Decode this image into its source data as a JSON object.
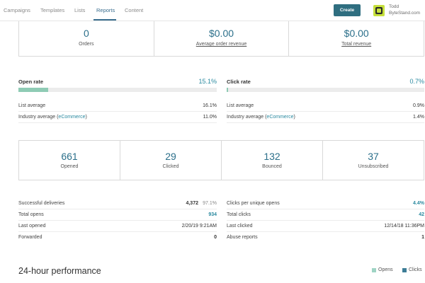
{
  "nav": {
    "items": [
      {
        "label": "Campaigns"
      },
      {
        "label": "Templates"
      },
      {
        "label": "Lists"
      },
      {
        "label": "Reports"
      },
      {
        "label": "Content"
      }
    ],
    "create_label": "Create",
    "user_name": "Todd",
    "user_org": "ByteStand.com"
  },
  "top_stats": [
    {
      "value": "0",
      "label": "Orders"
    },
    {
      "value": "$0.00",
      "label": "Average order revenue"
    },
    {
      "value": "$0.00",
      "label": "Total revenue"
    }
  ],
  "open_rate": {
    "title": "Open rate",
    "value": "15.1%",
    "fill_fraction": 0.151,
    "list_average_label": "List average",
    "list_average_value": "16.1%",
    "industry_prefix": "Industry average (",
    "industry_link": "eCommerce",
    "industry_suffix": ")",
    "industry_value": "11.0%"
  },
  "click_rate": {
    "title": "Click rate",
    "value": "0.7%",
    "fill_fraction": 0.007,
    "list_average_label": "List average",
    "list_average_value": "0.9%",
    "industry_prefix": "Industry average (",
    "industry_link": "eCommerce",
    "industry_suffix": ")",
    "industry_value": "1.4%"
  },
  "mid_stats": [
    {
      "value": "661",
      "label": "Opened"
    },
    {
      "value": "29",
      "label": "Clicked"
    },
    {
      "value": "132",
      "label": "Bounced"
    },
    {
      "value": "37",
      "label": "Unsubscribed"
    }
  ],
  "left_details": [
    {
      "label": "Successful deliveries",
      "value": "4,372",
      "extra": "97.1%"
    },
    {
      "label": "Total opens",
      "value": "934"
    },
    {
      "label": "Last opened",
      "value": "2/20/19 9:21AM"
    },
    {
      "label": "Forwarded",
      "value": "0"
    }
  ],
  "right_details": [
    {
      "label": "Clicks per unique opens",
      "value": "4.4%"
    },
    {
      "label": "Total clicks",
      "value": "42"
    },
    {
      "label": "Last clicked",
      "value": "12/14/18 11:36PM"
    },
    {
      "label": "Abuse reports",
      "value": "1"
    }
  ],
  "performance": {
    "title": "24-hour performance",
    "legend": [
      {
        "label": "Opens",
        "color": "#9fd4c4"
      },
      {
        "label": "Clicks",
        "color": "#3d7d96"
      }
    ]
  },
  "colors": {
    "accent": "#2b8aa0",
    "open_bar": "#8fcbb5",
    "click_bar": "#8fcbb5",
    "create_button": "#2f6e80"
  }
}
